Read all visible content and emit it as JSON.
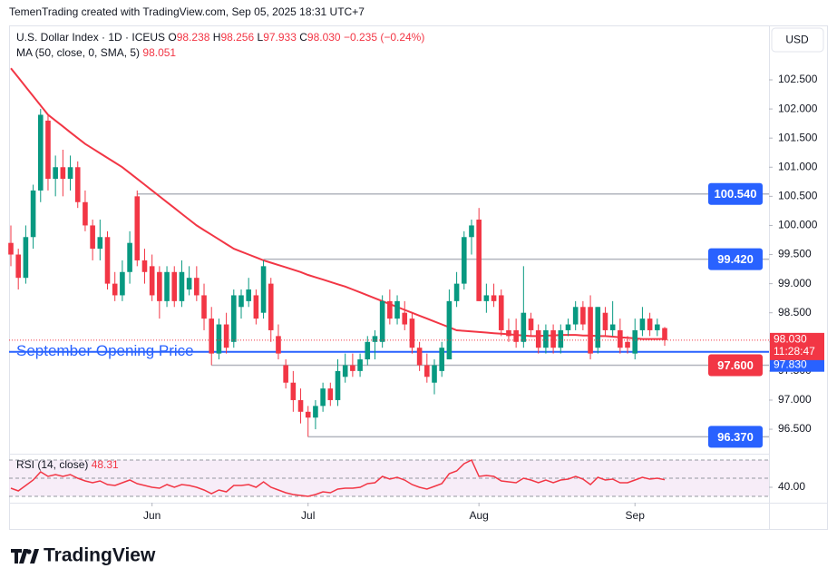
{
  "header": "TemenTrading created with TradingView.com, Sep 05, 2025 18:31 UTC+7",
  "legend": {
    "symbol": "U.S. Dollar Index · 1D · ICEUS",
    "ohlc": [
      {
        "key": "O",
        "value": "98.238"
      },
      {
        "key": "H",
        "value": "98.256"
      },
      {
        "key": "L",
        "value": "97.933"
      },
      {
        "key": "C",
        "value": "98.030"
      }
    ],
    "change": "−0.235 (−0.24%)",
    "ma_name": "MA (50, close, 0, SMA, 5)",
    "ma_value": "98.051",
    "rsi_name": "RSI (14, close)",
    "rsi_value": "48.31"
  },
  "currency_button": "USD",
  "brand": "TradingView",
  "chart_data": {
    "type": "candlestick",
    "up_color": "#089981",
    "down_color": "#f23645",
    "candles": [
      [
        99.7,
        100.0,
        99.3,
        99.5
      ],
      [
        99.5,
        99.6,
        98.9,
        99.1
      ],
      [
        99.1,
        100.0,
        99.0,
        99.8
      ],
      [
        99.8,
        100.7,
        99.6,
        100.6
      ],
      [
        100.6,
        102.0,
        100.4,
        101.9
      ],
      [
        101.8,
        101.9,
        100.6,
        100.8
      ],
      [
        100.8,
        101.2,
        100.5,
        101.0
      ],
      [
        101.0,
        101.3,
        100.5,
        100.8
      ],
      [
        100.8,
        101.2,
        100.6,
        101.0
      ],
      [
        101.0,
        101.1,
        100.3,
        100.4
      ],
      [
        100.4,
        100.6,
        99.9,
        100.0
      ],
      [
        100.0,
        100.1,
        99.4,
        99.6
      ],
      [
        99.6,
        100.1,
        99.4,
        99.8
      ],
      [
        99.8,
        99.9,
        98.9,
        99.0
      ],
      [
        99.0,
        99.2,
        98.7,
        98.8
      ],
      [
        98.8,
        99.4,
        98.7,
        99.2
      ],
      [
        99.2,
        99.9,
        99.0,
        99.7
      ],
      [
        100.5,
        100.6,
        99.3,
        99.4
      ],
      [
        99.4,
        99.6,
        99.0,
        99.2
      ],
      [
        99.3,
        99.5,
        98.7,
        98.8
      ],
      [
        99.2,
        99.3,
        98.4,
        98.7
      ],
      [
        98.7,
        99.3,
        98.6,
        99.2
      ],
      [
        99.2,
        99.3,
        98.6,
        98.7
      ],
      [
        98.7,
        99.4,
        98.6,
        99.2
      ],
      [
        98.9,
        99.3,
        98.8,
        99.1
      ],
      [
        99.1,
        99.3,
        98.7,
        98.8
      ],
      [
        98.8,
        99.0,
        98.2,
        98.4
      ],
      [
        98.4,
        98.6,
        97.6,
        97.8
      ],
      [
        97.8,
        98.4,
        97.7,
        98.3
      ],
      [
        98.3,
        98.5,
        97.8,
        97.9
      ],
      [
        98.0,
        98.9,
        97.9,
        98.8
      ],
      [
        98.6,
        98.9,
        98.4,
        98.8
      ],
      [
        98.7,
        99.1,
        98.6,
        98.9
      ],
      [
        98.8,
        98.9,
        98.3,
        98.4
      ],
      [
        98.5,
        99.4,
        98.4,
        99.3
      ],
      [
        99.0,
        99.1,
        98.0,
        98.2
      ],
      [
        98.1,
        98.3,
        97.7,
        97.8
      ],
      [
        97.6,
        97.7,
        97.2,
        97.3
      ],
      [
        97.3,
        97.5,
        96.8,
        97.0
      ],
      [
        97.0,
        97.2,
        96.6,
        96.8
      ],
      [
        96.8,
        96.9,
        96.37,
        96.7
      ],
      [
        96.7,
        97.0,
        96.5,
        96.9
      ],
      [
        96.9,
        97.3,
        96.8,
        97.2
      ],
      [
        97.2,
        97.3,
        96.9,
        97.0
      ],
      [
        97.0,
        97.7,
        96.9,
        97.5
      ],
      [
        97.4,
        97.8,
        97.3,
        97.6
      ],
      [
        97.6,
        97.8,
        97.4,
        97.5
      ],
      [
        97.5,
        97.8,
        97.4,
        97.7
      ],
      [
        97.7,
        98.1,
        97.6,
        98.0
      ],
      [
        98.0,
        98.2,
        97.7,
        98.1
      ],
      [
        98.0,
        98.8,
        97.9,
        98.7
      ],
      [
        98.7,
        98.9,
        98.3,
        98.4
      ],
      [
        98.4,
        98.8,
        98.3,
        98.7
      ],
      [
        98.5,
        98.7,
        98.2,
        98.3
      ],
      [
        98.4,
        98.5,
        97.8,
        97.9
      ],
      [
        97.9,
        98.0,
        97.5,
        97.6
      ],
      [
        97.6,
        97.8,
        97.3,
        97.4
      ],
      [
        97.3,
        97.7,
        97.1,
        97.6
      ],
      [
        97.5,
        98.0,
        97.4,
        97.9
      ],
      [
        97.7,
        98.9,
        97.7,
        98.7
      ],
      [
        98.7,
        99.2,
        98.6,
        99.0
      ],
      [
        99.0,
        99.9,
        98.9,
        99.8
      ],
      [
        99.8,
        100.1,
        99.5,
        100.0
      ],
      [
        100.1,
        100.3,
        98.7,
        98.7
      ],
      [
        98.7,
        99.0,
        98.5,
        98.8
      ],
      [
        98.8,
        99.0,
        98.6,
        98.7
      ],
      [
        98.8,
        98.9,
        98.1,
        98.2
      ],
      [
        98.2,
        98.4,
        98.0,
        98.1
      ],
      [
        98.2,
        98.4,
        97.9,
        98.0
      ],
      [
        98.0,
        99.3,
        97.9,
        98.5
      ],
      [
        98.4,
        98.5,
        98.1,
        98.2
      ],
      [
        98.2,
        98.3,
        97.8,
        97.9
      ],
      [
        97.9,
        98.3,
        97.8,
        98.2
      ],
      [
        98.2,
        98.3,
        97.8,
        97.9
      ],
      [
        97.9,
        98.3,
        97.8,
        98.2
      ],
      [
        98.2,
        98.4,
        98.1,
        98.3
      ],
      [
        98.3,
        98.7,
        98.2,
        98.6
      ],
      [
        98.6,
        98.7,
        98.2,
        98.3
      ],
      [
        98.6,
        98.8,
        97.7,
        97.8
      ],
      [
        97.9,
        98.6,
        97.8,
        98.6
      ],
      [
        98.5,
        98.6,
        98.1,
        98.2
      ],
      [
        98.2,
        98.7,
        98.1,
        98.3
      ],
      [
        98.2,
        98.4,
        97.8,
        97.9
      ],
      [
        98.0,
        98.1,
        97.8,
        97.9
      ],
      [
        97.8,
        98.4,
        97.7,
        98.2
      ],
      [
        98.2,
        98.6,
        98.1,
        98.4
      ],
      [
        98.4,
        98.5,
        98.1,
        98.2
      ],
      [
        98.2,
        98.4,
        98.1,
        98.3
      ],
      [
        98.238,
        98.256,
        97.933,
        98.03
      ]
    ],
    "ma": {
      "color": "#f23645",
      "values": [
        102.7,
        102.54,
        102.38,
        102.22,
        102.06,
        101.9,
        101.8,
        101.7,
        101.6,
        101.5,
        101.4,
        101.32,
        101.24,
        101.16,
        101.08,
        101.0,
        100.9,
        100.8,
        100.7,
        100.6,
        100.5,
        100.4,
        100.3,
        100.2,
        100.1,
        100.0,
        99.92,
        99.84,
        99.76,
        99.68,
        99.6,
        99.55,
        99.5,
        99.45,
        99.4,
        99.36,
        99.32,
        99.28,
        99.24,
        99.2,
        99.15,
        99.11,
        99.07,
        99.03,
        98.99,
        98.95,
        98.9,
        98.85,
        98.8,
        98.75,
        98.7,
        98.65,
        98.6,
        98.55,
        98.5,
        98.45,
        98.4,
        98.35,
        98.3,
        98.25,
        98.2,
        98.19,
        98.18,
        98.17,
        98.16,
        98.15,
        98.14,
        98.13,
        98.12,
        98.11,
        98.1,
        98.1,
        98.11,
        98.11,
        98.12,
        98.12,
        98.12,
        98.11,
        98.11,
        98.1,
        98.1,
        98.09,
        98.08,
        98.07,
        98.06,
        98.05,
        98.05,
        98.05,
        98.051
      ]
    },
    "ylim": [
      96.08,
      103.435
    ],
    "yticks": [
      {
        "value": 96.5,
        "label": "96.500"
      },
      {
        "value": 97,
        "label": "97.000"
      },
      {
        "value": 97.5,
        "label": "97.500"
      },
      {
        "value": 98,
        "label": "98.000"
      },
      {
        "value": 98.5,
        "label": "98.500"
      },
      {
        "value": 99,
        "label": "99.000"
      },
      {
        "value": 99.5,
        "label": "99.500"
      },
      {
        "value": 100,
        "label": "100.000"
      },
      {
        "value": 100.5,
        "label": "100.500"
      },
      {
        "value": 101,
        "label": "101.000"
      },
      {
        "value": 101.5,
        "label": "101.500"
      },
      {
        "value": 102,
        "label": "102.000"
      },
      {
        "value": 102.5,
        "label": "102.500"
      }
    ],
    "xticks": [
      {
        "value": 19,
        "label": "Jun"
      },
      {
        "value": 40,
        "label": "Jul"
      },
      {
        "value": 63,
        "label": "Aug"
      },
      {
        "value": 84,
        "label": "Sep"
      }
    ],
    "levels": [
      {
        "value": 100.54,
        "label": "100.540",
        "from": 17
      },
      {
        "value": 99.42,
        "label": "99.420",
        "from": 34
      },
      {
        "value": 97.6,
        "label": "97.600",
        "from": 27
      },
      {
        "value": 96.37,
        "label": "96.370",
        "from": 40
      }
    ],
    "opening_price": {
      "value": 97.83,
      "label": "September Opening Price",
      "axis_label": "97.830",
      "color": "#2962ff"
    },
    "last_price": {
      "value": 98.03,
      "label": "98.030",
      "countdown": "11:28:47"
    },
    "rsi": {
      "color": "#f23645",
      "ylim": [
        24,
        76
      ],
      "yticks": [
        {
          "value": 40,
          "label": "40.00"
        }
      ],
      "bands": [
        70,
        50,
        30
      ],
      "values": [
        39,
        36,
        42,
        48,
        57,
        52,
        54,
        52,
        54,
        50,
        47,
        45,
        47,
        43,
        42,
        45,
        48,
        44,
        42,
        40,
        39,
        43,
        40,
        43,
        42,
        40,
        37,
        33,
        37,
        35,
        42,
        42,
        43,
        40,
        46,
        40,
        37,
        34,
        32,
        31,
        30,
        32,
        35,
        34,
        38,
        39,
        39,
        40,
        44,
        45,
        52,
        49,
        51,
        48,
        43,
        40,
        38,
        41,
        44,
        55,
        58,
        66,
        70,
        52,
        53,
        52,
        47,
        46,
        45,
        50,
        48,
        45,
        48,
        45,
        48,
        49,
        52,
        49,
        43,
        51,
        48,
        49,
        45,
        45,
        48,
        51,
        49,
        50,
        48.31
      ]
    }
  }
}
